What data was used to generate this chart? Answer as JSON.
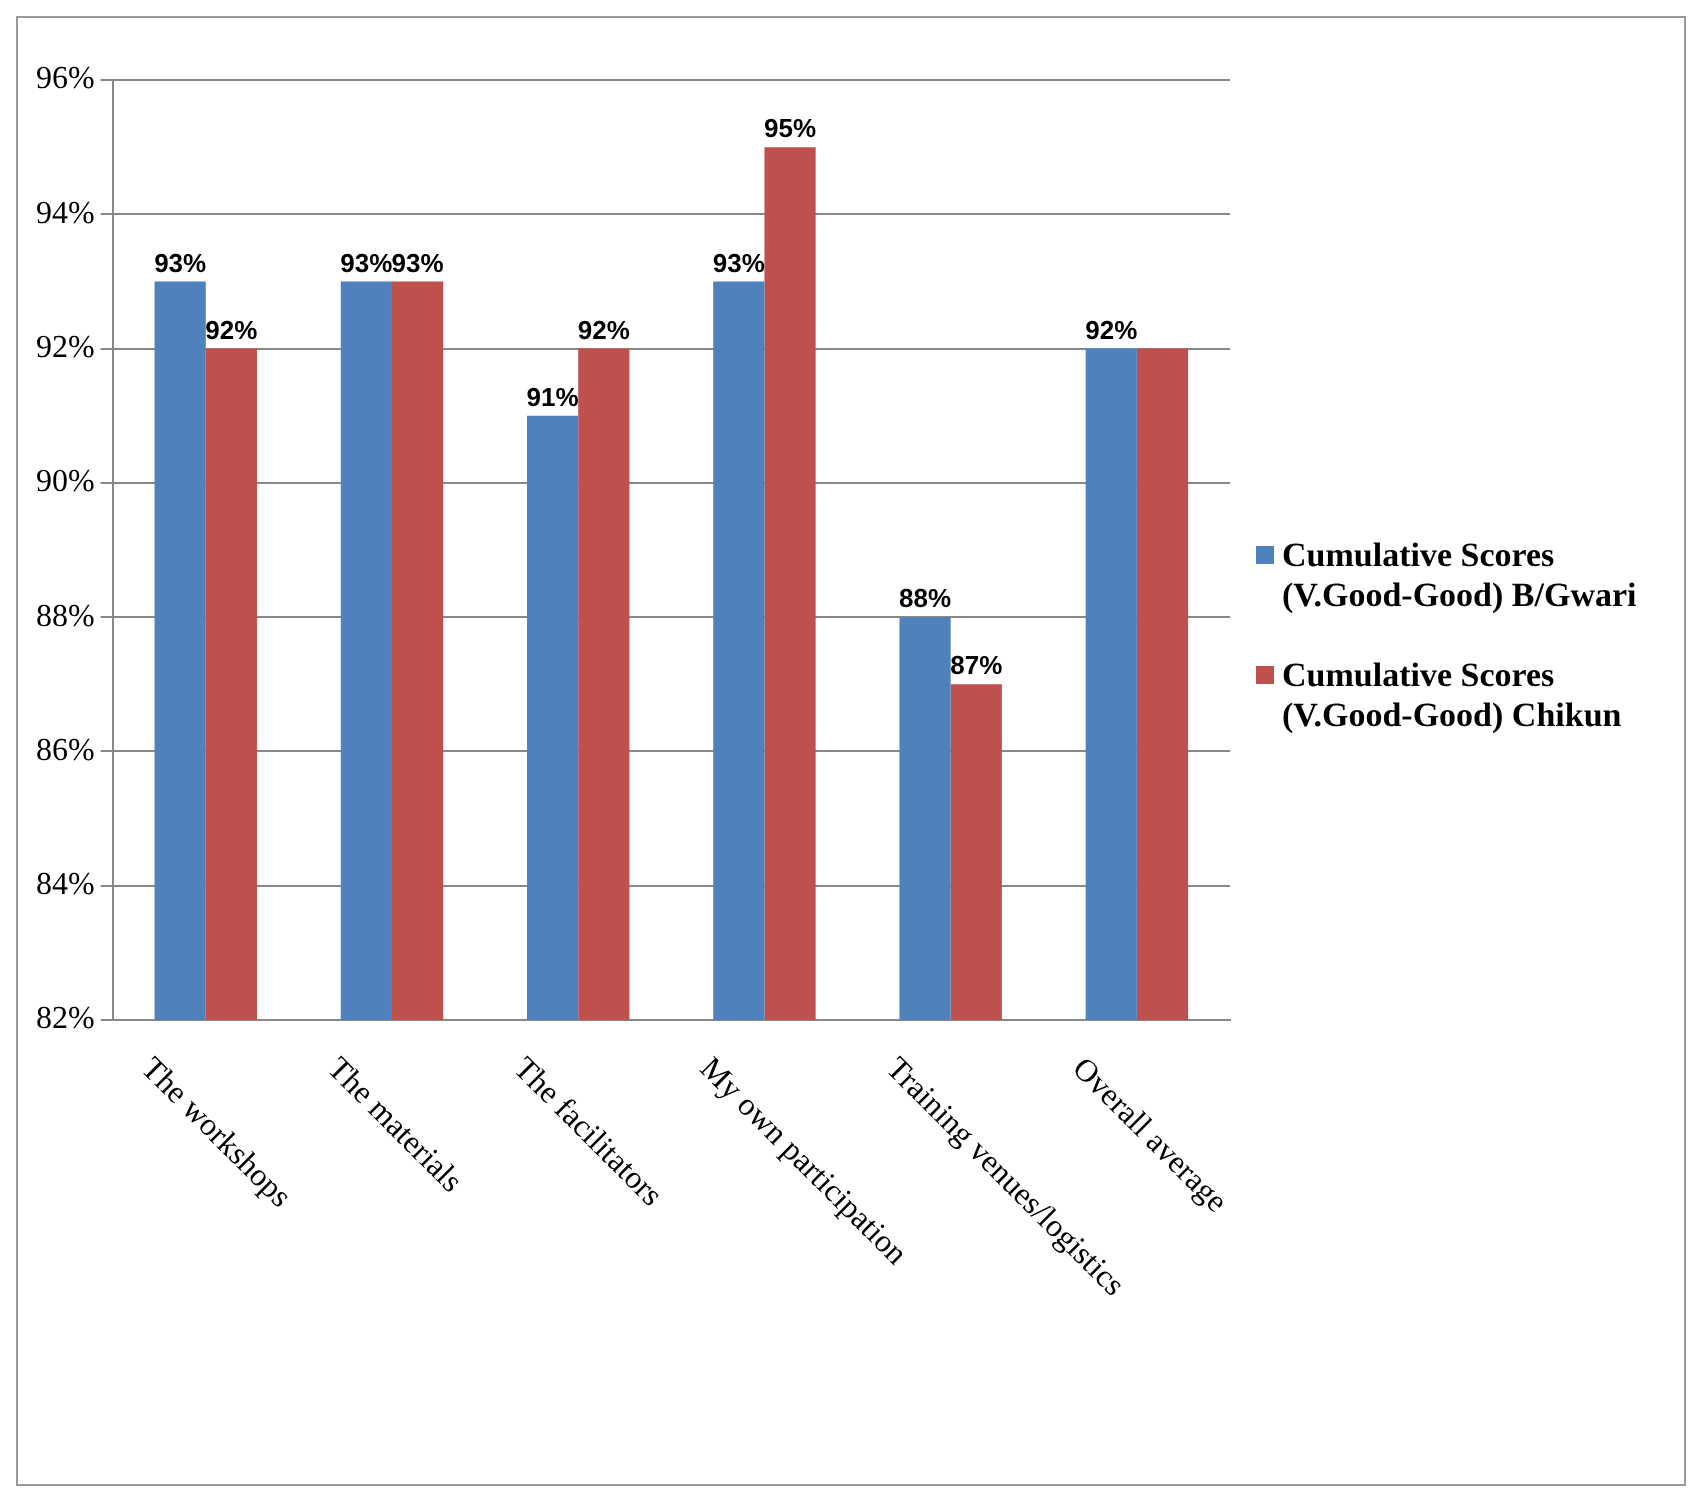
{
  "chart_data": {
    "type": "bar",
    "categories": [
      "The workshops",
      "The materials",
      "The facilitators",
      "My own participation",
      "Training venues/logistics",
      "Overall average"
    ],
    "series": [
      {
        "name": "Cumulative Scores (V.Good-Good) B/Gwari",
        "color": "#4f81bd",
        "values": [
          93,
          93,
          91,
          93,
          88,
          92
        ],
        "value_labels": [
          "93%",
          "93%",
          "91%",
          "93%",
          "88%",
          "92%"
        ]
      },
      {
        "name": "Cumulative Scores (V.Good-Good) Chikun",
        "color": "#c0504d",
        "values": [
          92,
          93,
          92,
          95,
          87,
          92
        ],
        "value_labels": [
          "92%",
          "93%",
          "92%",
          "95%",
          "87%",
          null
        ]
      }
    ],
    "ylim": [
      82,
      96
    ],
    "yticks": [
      {
        "value": 82,
        "label": "82%"
      },
      {
        "value": 84,
        "label": "84%"
      },
      {
        "value": 86,
        "label": "86%"
      },
      {
        "value": 88,
        "label": "88%"
      },
      {
        "value": 90,
        "label": "90%"
      },
      {
        "value": 92,
        "label": "92%"
      },
      {
        "value": 94,
        "label": "94%"
      },
      {
        "value": 96,
        "label": "96%"
      }
    ],
    "grid": "y",
    "legend": "right"
  }
}
